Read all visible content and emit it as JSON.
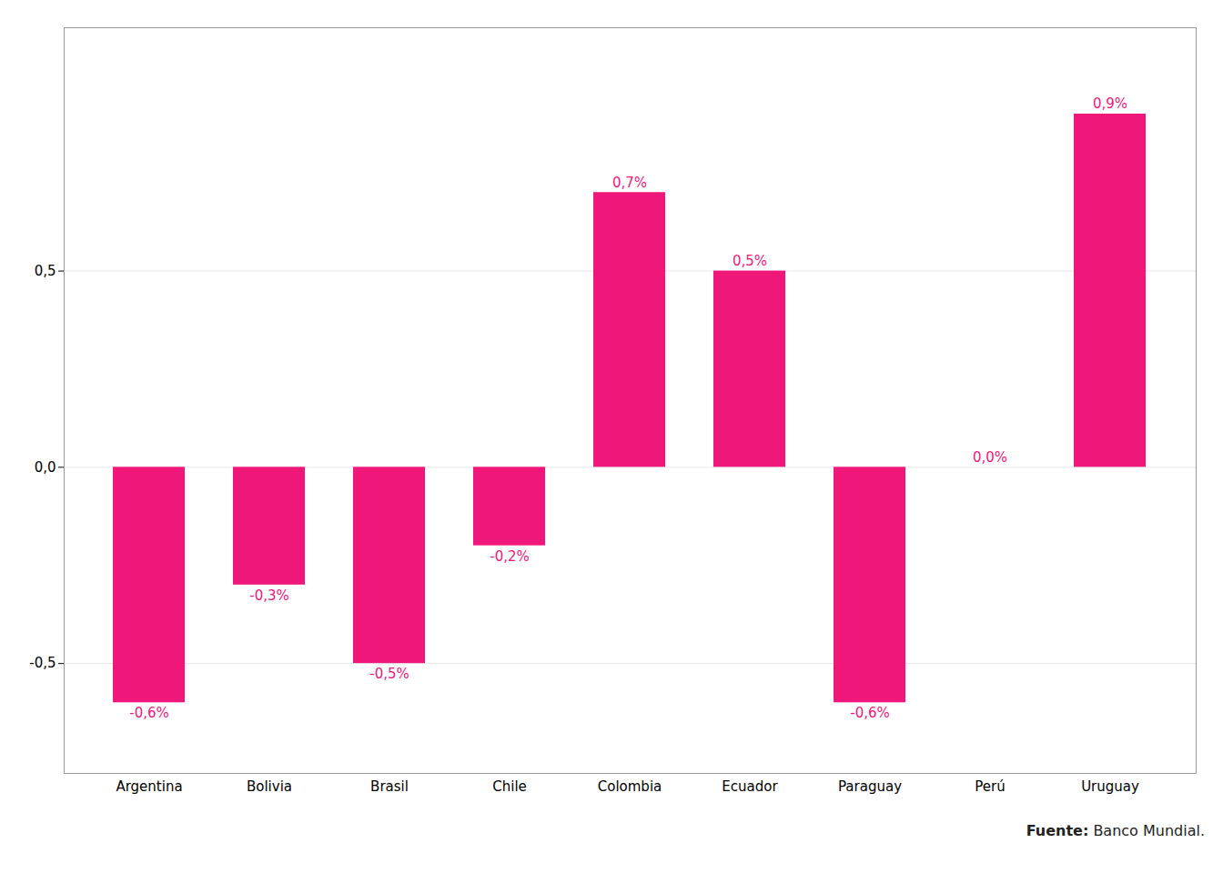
{
  "chart_data": {
    "type": "bar",
    "categories": [
      "Argentina",
      "Bolivia",
      "Brasil",
      "Chile",
      "Colombia",
      "Ecuador",
      "Paraguay",
      "Perú",
      "Uruguay"
    ],
    "values": [
      -0.6,
      -0.3,
      -0.5,
      -0.2,
      0.7,
      0.5,
      -0.6,
      0.0,
      0.9
    ],
    "value_labels": [
      "-0,6%",
      "-0,3%",
      "-0,5%",
      "-0,2%",
      "0,7%",
      "0,5%",
      "-0,6%",
      "0,0%",
      "0,9%"
    ],
    "data_labels": true,
    "color": "#F0177A",
    "ylim": [
      -0.78,
      1.12
    ],
    "yticks": [
      {
        "value": -0.5,
        "label": "-0,5"
      },
      {
        "value": 0.0,
        "label": "0,0"
      },
      {
        "value": 0.5,
        "label": "0,5"
      }
    ],
    "grid": true,
    "annotations": [
      "Fuente:",
      "Banco Mundial."
    ]
  }
}
